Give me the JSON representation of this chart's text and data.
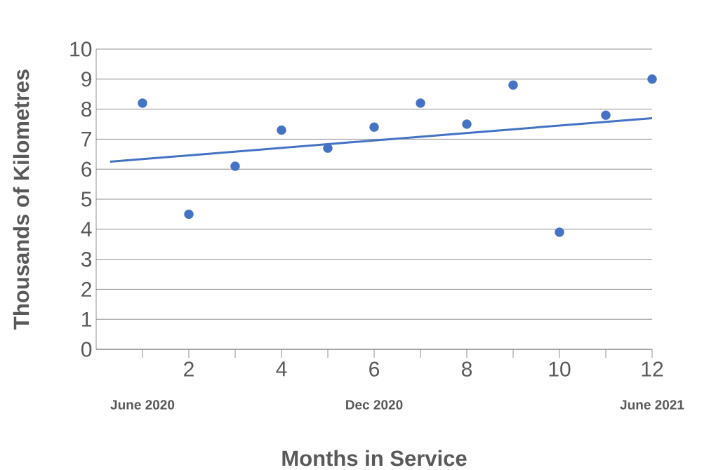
{
  "chart_data": {
    "type": "scatter",
    "xlabel": "Months in Service",
    "ylabel": "Thousands of Kilometres",
    "series": [
      {
        "color": "#4472c4",
        "marker": "circle",
        "x": [
          1,
          2,
          3,
          4,
          5,
          6,
          7,
          8,
          9,
          10,
          11,
          12
        ],
        "values": [
          8.2,
          4.5,
          6.1,
          7.3,
          6.7,
          7.4,
          8.2,
          7.5,
          8.8,
          3.9,
          7.8,
          9.0
        ]
      },
      {
        "type": "line",
        "color": "#4472c4",
        "marker": "none",
        "x": [
          0.3,
          12
        ],
        "values": [
          6.25,
          7.7
        ]
      }
    ],
    "xlim": [
      0,
      12
    ],
    "ylim": [
      0,
      10
    ],
    "xticks": [
      {
        "value": 1,
        "label": null
      },
      2,
      {
        "value": 3,
        "label": null
      },
      4,
      {
        "value": 5,
        "label": null
      },
      6,
      {
        "value": 7,
        "label": null
      },
      8,
      {
        "value": 9,
        "label": null
      },
      10,
      {
        "value": 11,
        "label": null
      },
      12
    ],
    "yticks": [
      0,
      1,
      2,
      3,
      4,
      5,
      6,
      7,
      8,
      9,
      10
    ],
    "grid": "y",
    "line_style": "solid",
    "annotations": [
      "June 2020",
      "Dec 2020",
      "June 2021"
    ]
  }
}
